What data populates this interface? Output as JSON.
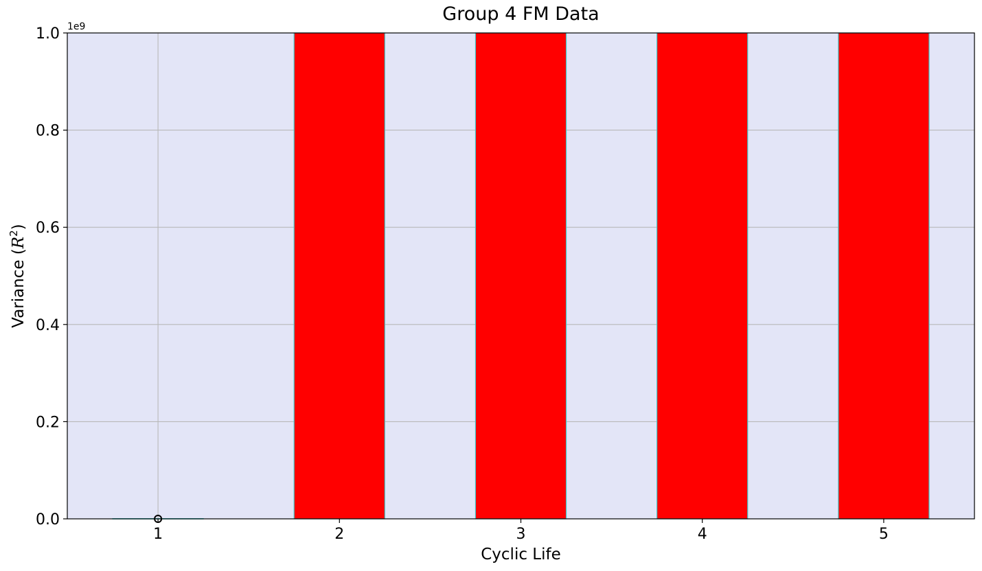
{
  "chart_data": {
    "type": "box",
    "title": "Group 4 FM Data",
    "xlabel": "Cyclic Life",
    "ylabel_prefix": "Variance (",
    "ylabel_math_base": "R",
    "ylabel_math_exp": "2",
    "ylabel_suffix": ")",
    "y_offset_label": "1e9",
    "categories": [
      "1",
      "2",
      "3",
      "4",
      "5"
    ],
    "xlim": [
      0.5,
      5.5
    ],
    "ylim": [
      0,
      1.0
    ],
    "y_ticks": [
      0.0,
      0.2,
      0.4,
      0.6,
      0.8,
      1.0
    ],
    "y_tick_labels": [
      "0.0",
      "0.2",
      "0.4",
      "0.6",
      "0.8",
      "1.0"
    ],
    "grid": true,
    "colors": {
      "plot_background": "#e3e5f7",
      "box_fill": "#ff0000",
      "box_edge": "#40c8c8",
      "grid": "#b8b8b8",
      "outlier": "#000000"
    },
    "boxes": [
      {
        "category": "1",
        "q1": 0.0,
        "q3": 0.0005,
        "whisker_low": 0.0,
        "whisker_high": 0.0005,
        "outliers": [
          0.0
        ]
      },
      {
        "category": "2",
        "q1": 0.0,
        "q3": 1.0,
        "whisker_low": 0.0,
        "whisker_high": 1.0,
        "outliers": []
      },
      {
        "category": "3",
        "q1": 0.0,
        "q3": 1.0,
        "whisker_low": 0.0,
        "whisker_high": 1.0,
        "outliers": []
      },
      {
        "category": "4",
        "q1": 0.0,
        "q3": 1.0,
        "whisker_low": 0.0,
        "whisker_high": 1.0,
        "outliers": []
      },
      {
        "category": "5",
        "q1": 0.0,
        "q3": 1.0,
        "whisker_low": 0.0,
        "whisker_high": 1.0,
        "outliers": []
      }
    ]
  }
}
